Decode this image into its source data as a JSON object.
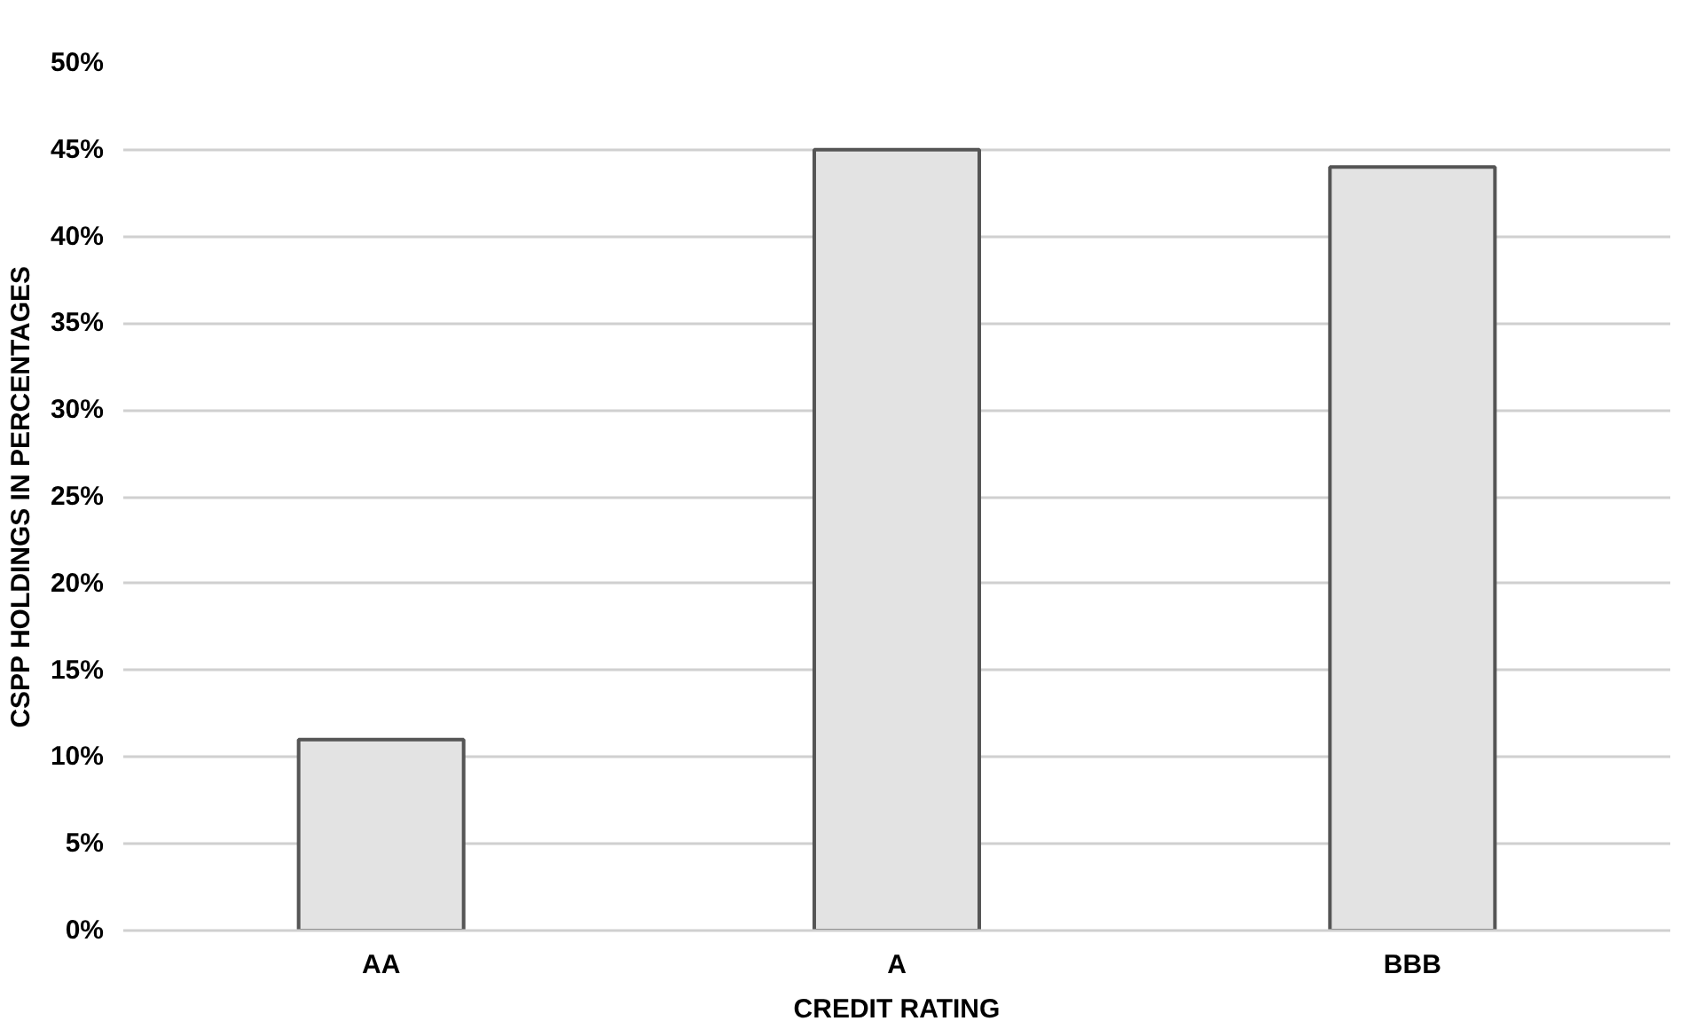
{
  "chart_data": {
    "type": "bar",
    "xlabel": "CREDIT RATING",
    "ylabel": "CSPP HOLDINGS IN PERCENTAGES",
    "categories": [
      "AA",
      "A",
      "BBB"
    ],
    "values": [
      11,
      45,
      44
    ],
    "color": "#e3e3e3",
    "ylim": [
      0,
      50
    ],
    "yticks": [
      {
        "value": 0,
        "label": "0%"
      },
      {
        "value": 5,
        "label": "5%"
      },
      {
        "value": 10,
        "label": "10%"
      },
      {
        "value": 15,
        "label": "15%"
      },
      {
        "value": 20,
        "label": "20%"
      },
      {
        "value": 25,
        "label": "25%"
      },
      {
        "value": 30,
        "label": "30%"
      },
      {
        "value": 35,
        "label": "35%"
      },
      {
        "value": 40,
        "label": "40%"
      },
      {
        "value": 45,
        "label": "45%"
      },
      {
        "value": 50,
        "label": "50%"
      }
    ],
    "grid": "y"
  }
}
